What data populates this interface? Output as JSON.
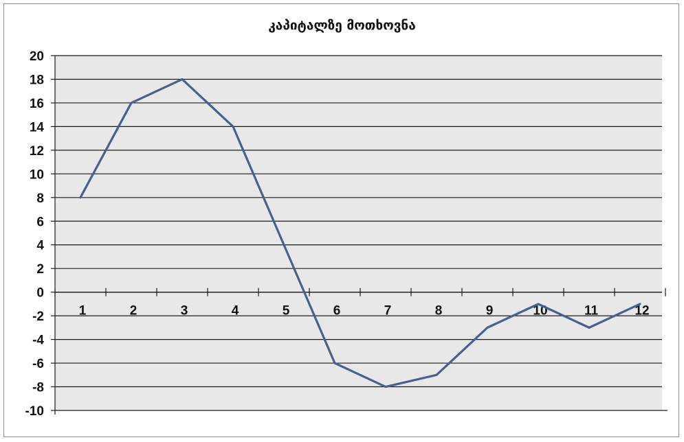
{
  "chart_data": {
    "type": "line",
    "title": "კაპიტალზე მოთხოვნა",
    "xlabel": "",
    "ylabel": "",
    "categories": [
      "1",
      "2",
      "3",
      "4",
      "5",
      "6",
      "7",
      "8",
      "9",
      "10",
      "11",
      "12"
    ],
    "series": [
      {
        "values": [
          8,
          16,
          18,
          14,
          4,
          -6,
          -8,
          -7,
          -3,
          -1,
          -3,
          -1
        ]
      }
    ],
    "ylim": [
      -10,
      20
    ],
    "yticks": [
      20,
      18,
      16,
      14,
      12,
      10,
      8,
      6,
      4,
      2,
      0,
      -2,
      -4,
      -6,
      -8,
      -10
    ],
    "grid": true,
    "line_color": "#4a5f91",
    "plot_background": "#e8e8e8"
  }
}
